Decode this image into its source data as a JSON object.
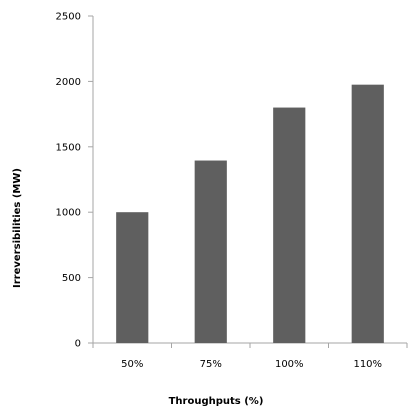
{
  "chart_data": {
    "type": "bar",
    "title": "",
    "xlabel": "Throughputs (%)",
    "ylabel": "Irreversibilities (MW)",
    "categories": [
      "50%",
      "75%",
      "100%",
      "110%"
    ],
    "values": [
      1000,
      1395,
      1800,
      1975
    ],
    "ylim": [
      0,
      2500
    ],
    "yticks": [
      "0",
      "500",
      "1000",
      "1500",
      "2000",
      "2500"
    ],
    "grid": false,
    "legend": "none",
    "bar_color": "#5f5f5f",
    "axis_color": "#a6a6a6"
  }
}
